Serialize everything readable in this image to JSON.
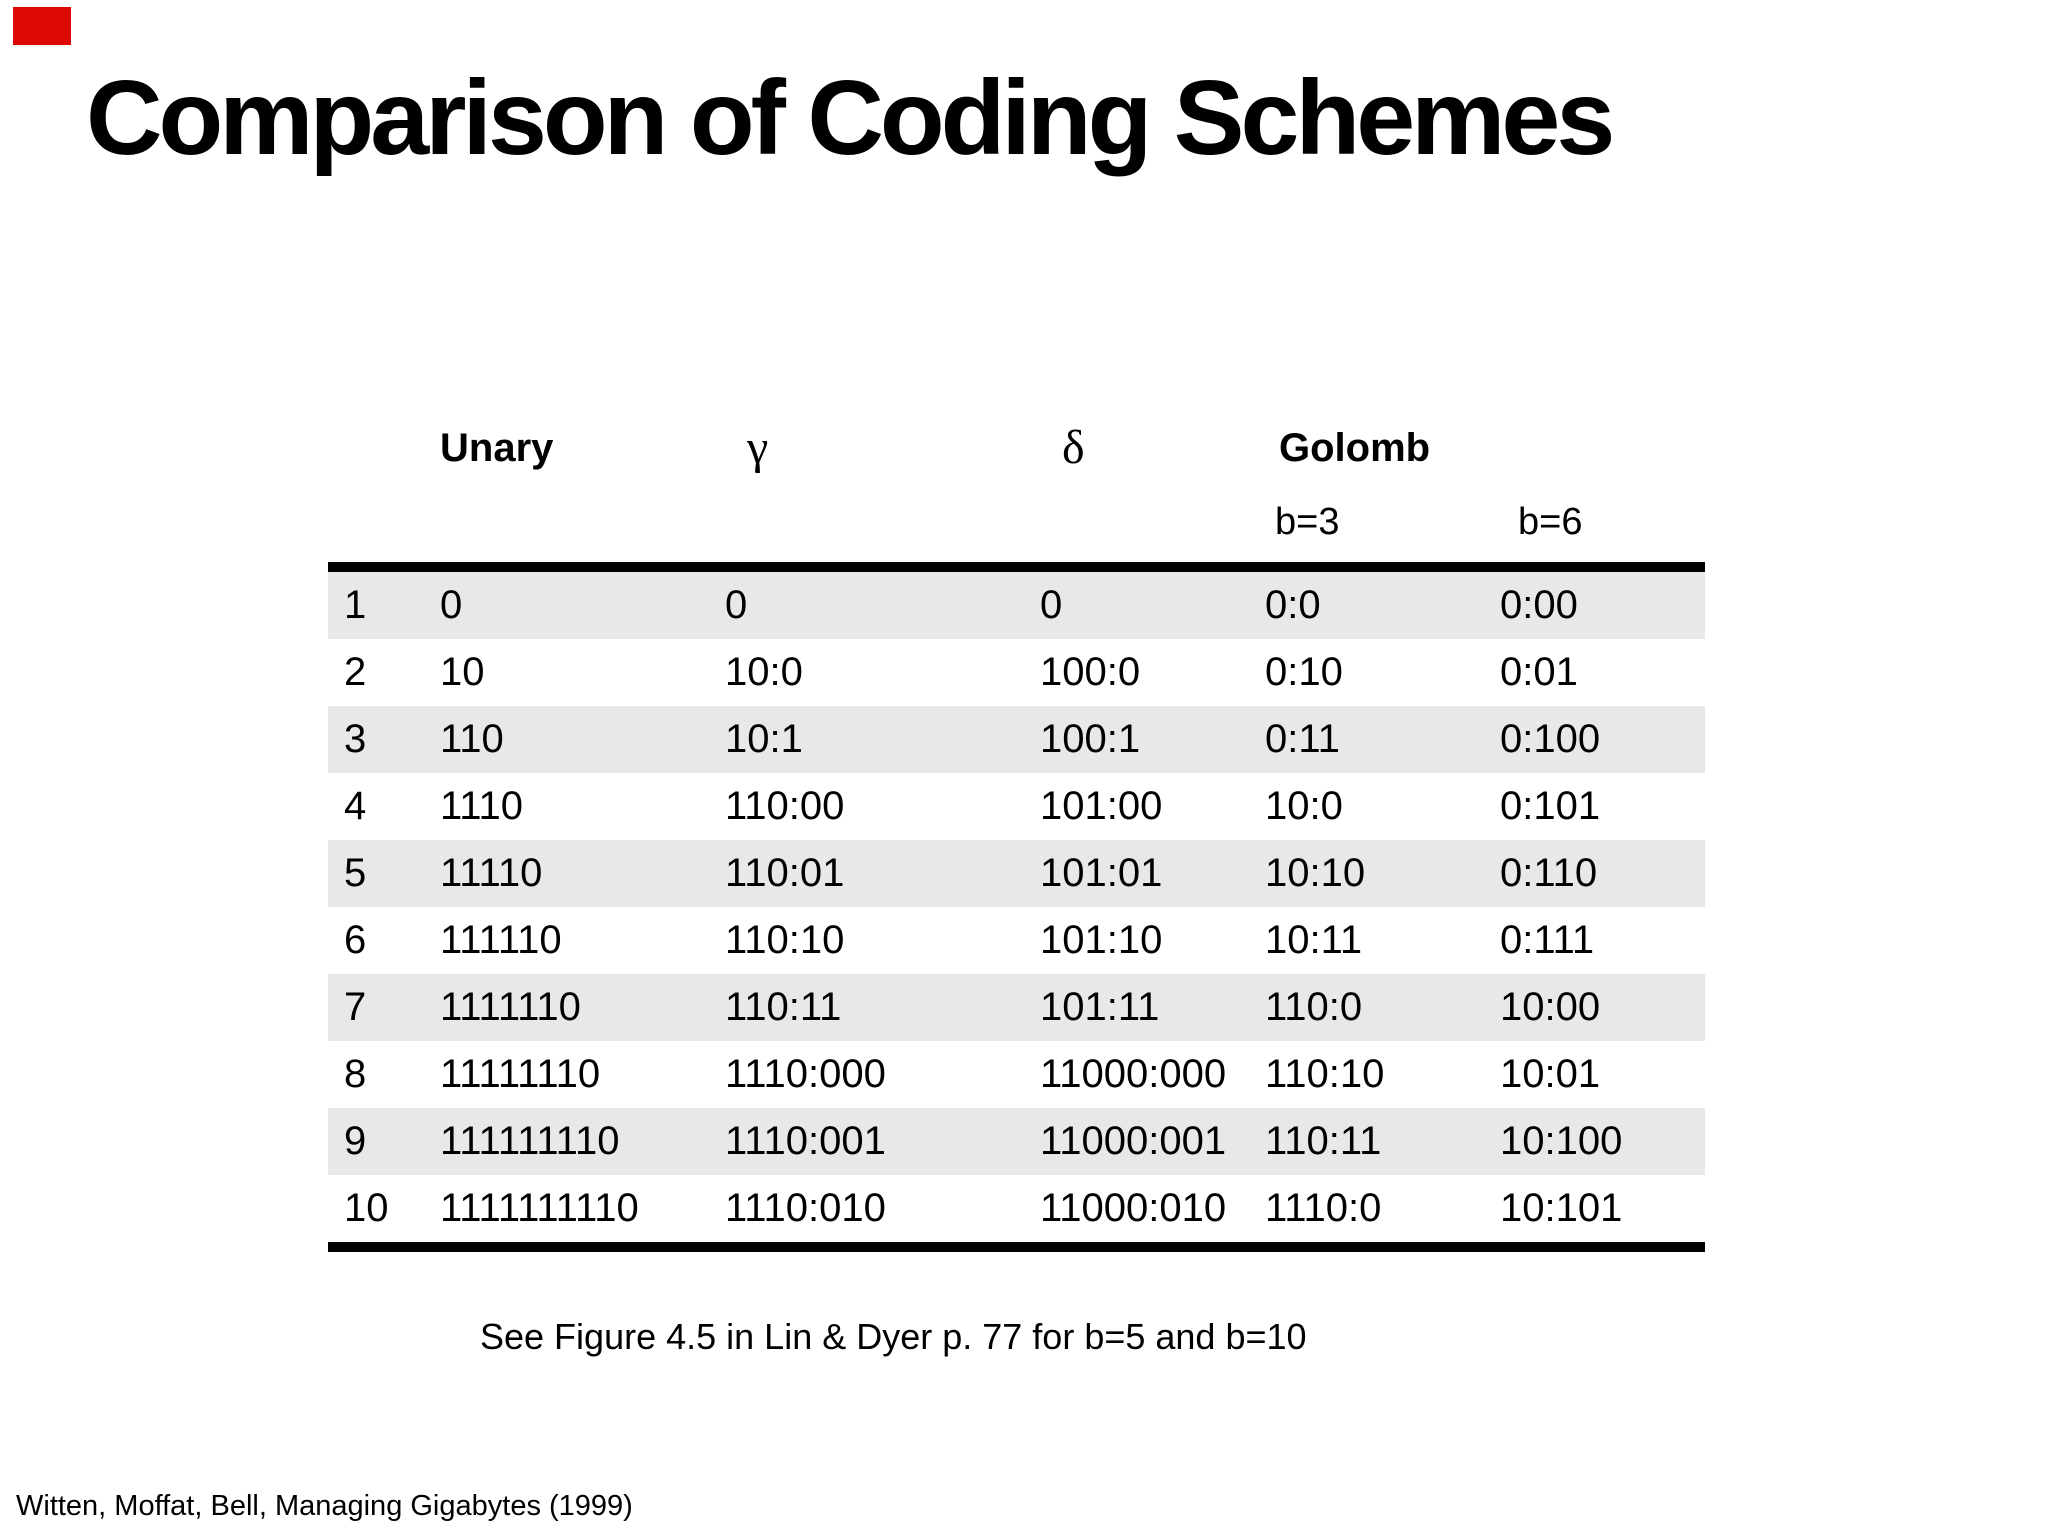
{
  "slide": {
    "title": "Comparison of Coding Schemes",
    "note": "See Figure 4.5 in Lin & Dyer p. 77 for b=5 and b=10",
    "footer": "Witten, Moffat, Bell, Managing Gigabytes (1999)"
  },
  "decor": {
    "red_marker_color": "#dd0806",
    "stripe_color": "#e8e8e8",
    "rule_color": "#000000"
  },
  "table": {
    "headers": {
      "unary": "Unary",
      "gamma": "γ",
      "delta": "δ",
      "golomb": "Golomb",
      "b3": "b=3",
      "b6": "b=6"
    },
    "rows": [
      {
        "n": "1",
        "unary": "0",
        "gamma": "0",
        "delta": "0",
        "b3": "0:0",
        "b6": "0:00"
      },
      {
        "n": "2",
        "unary": "10",
        "gamma": "10:0",
        "delta": "100:0",
        "b3": "0:10",
        "b6": "0:01"
      },
      {
        "n": "3",
        "unary": "110",
        "gamma": "10:1",
        "delta": "100:1",
        "b3": "0:11",
        "b6": "0:100"
      },
      {
        "n": "4",
        "unary": "1110",
        "gamma": "110:00",
        "delta": "101:00",
        "b3": "10:0",
        "b6": "0:101"
      },
      {
        "n": "5",
        "unary": "11110",
        "gamma": "110:01",
        "delta": "101:01",
        "b3": "10:10",
        "b6": "0:110"
      },
      {
        "n": "6",
        "unary": "111110",
        "gamma": "110:10",
        "delta": "101:10",
        "b3": "10:11",
        "b6": "0:111"
      },
      {
        "n": "7",
        "unary": "1111110",
        "gamma": "110:11",
        "delta": "101:11",
        "b3": "110:0",
        "b6": "10:00"
      },
      {
        "n": "8",
        "unary": "11111110",
        "gamma": "1110:000",
        "delta": "11000:000",
        "b3": "110:10",
        "b6": "10:01"
      },
      {
        "n": "9",
        "unary": "111111110",
        "gamma": "1110:001",
        "delta": "11000:001",
        "b3": "110:11",
        "b6": "10:100"
      },
      {
        "n": "10",
        "unary": "1111111110",
        "gamma": "1110:010",
        "delta": "11000:010",
        "b3": "1110:0",
        "b6": "10:101"
      }
    ]
  }
}
